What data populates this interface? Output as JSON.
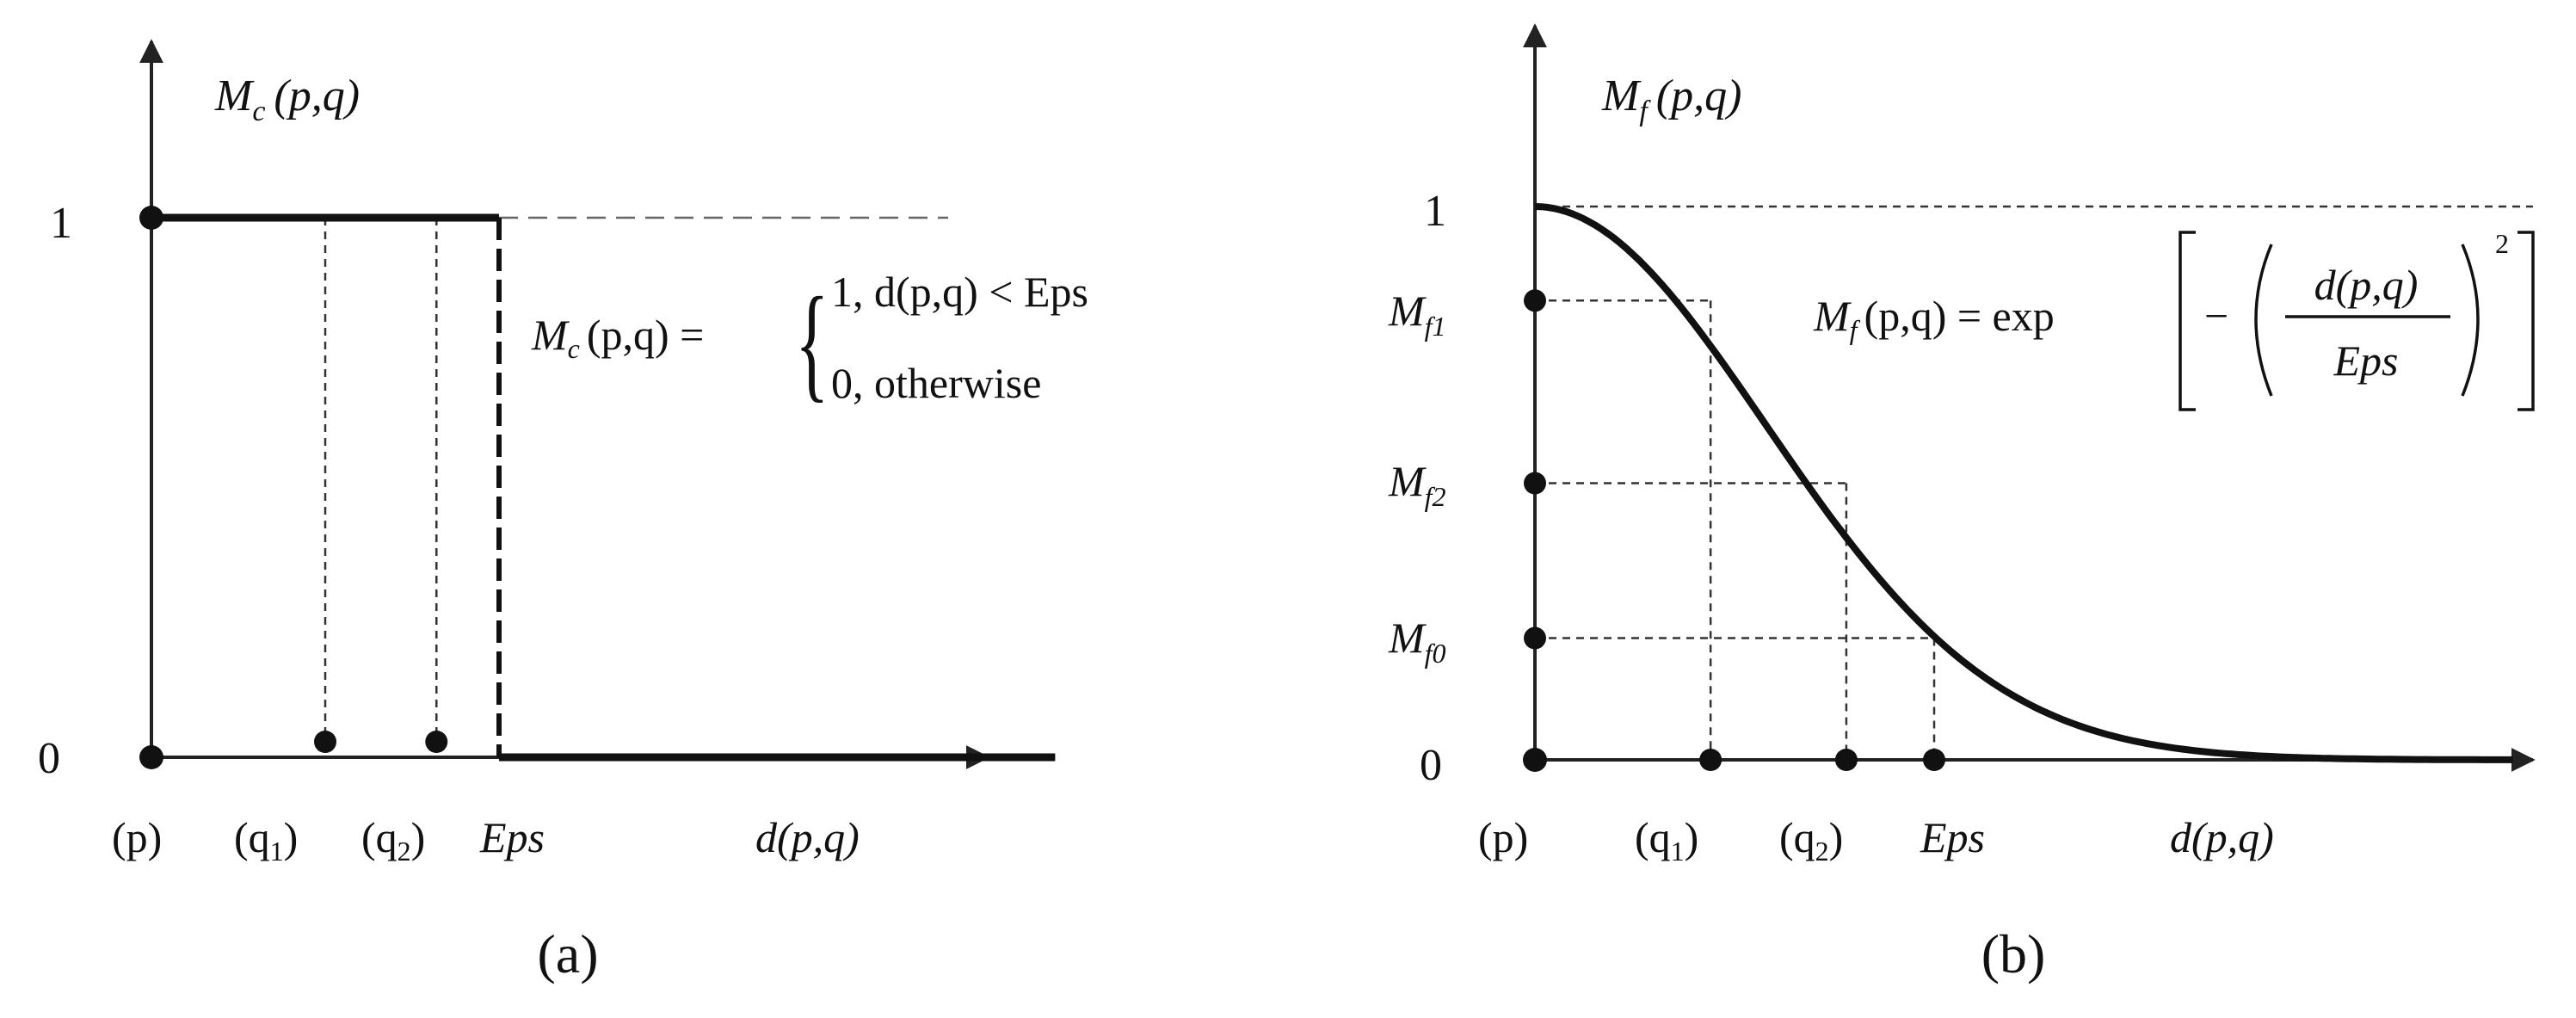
{
  "chart_data": [
    {
      "type": "line",
      "panel_label": "(a)",
      "y_label": {
        "symbol": "M",
        "sub": "c",
        "args": "(p,q)"
      },
      "y_ticks": [
        "1",
        "0"
      ],
      "x_ticks": [
        "(p)",
        "(q",
        "(q",
        "Eps",
        "d(p,q)"
      ],
      "x_tick_subs": [
        "",
        "1",
        "2",
        "",
        ""
      ],
      "eps": 1.0,
      "points": {
        "q1": 0.5,
        "q2": 0.82
      },
      "series": [
        {
          "x": [
            0,
            1.0,
            1.0,
            2.6
          ],
          "y": [
            1,
            1,
            0,
            0
          ]
        }
      ],
      "formula": {
        "lhs_symbol": "M",
        "lhs_sub": "c",
        "lhs_args": "(p,q) =",
        "brace": "{",
        "case1": "1,  d(p,q) < Eps",
        "case2": "0,  otherwise"
      }
    },
    {
      "type": "line",
      "panel_label": "(b)",
      "y_label": {
        "symbol": "M",
        "sub": "f",
        "args": "(p,q)"
      },
      "y_ticks": [
        "1",
        "0"
      ],
      "y_marks": [
        {
          "symbol": "M",
          "sub": "f1",
          "value": 0.83
        },
        {
          "symbol": "M",
          "sub": "f2",
          "value": 0.5
        },
        {
          "symbol": "M",
          "sub": "f0",
          "value": 0.22
        }
      ],
      "x_ticks": [
        "(p)",
        "(q",
        "(q",
        "Eps",
        "d(p,q)"
      ],
      "x_tick_subs": [
        "",
        "1",
        "2",
        "",
        ""
      ],
      "eps": 1.0,
      "points": {
        "q1": 0.44,
        "q2": 0.78
      },
      "series": [
        {
          "function": "exp(-(d/Eps)^2)",
          "x_range": [
            0,
            2.45
          ]
        }
      ],
      "formula": {
        "lhs_symbol": "M",
        "lhs_sub": "f",
        "lhs_args": "(p,q) = exp",
        "numerator": "d(p,q)",
        "denominator": "Eps",
        "minus": "−",
        "exponent": "2"
      }
    }
  ]
}
